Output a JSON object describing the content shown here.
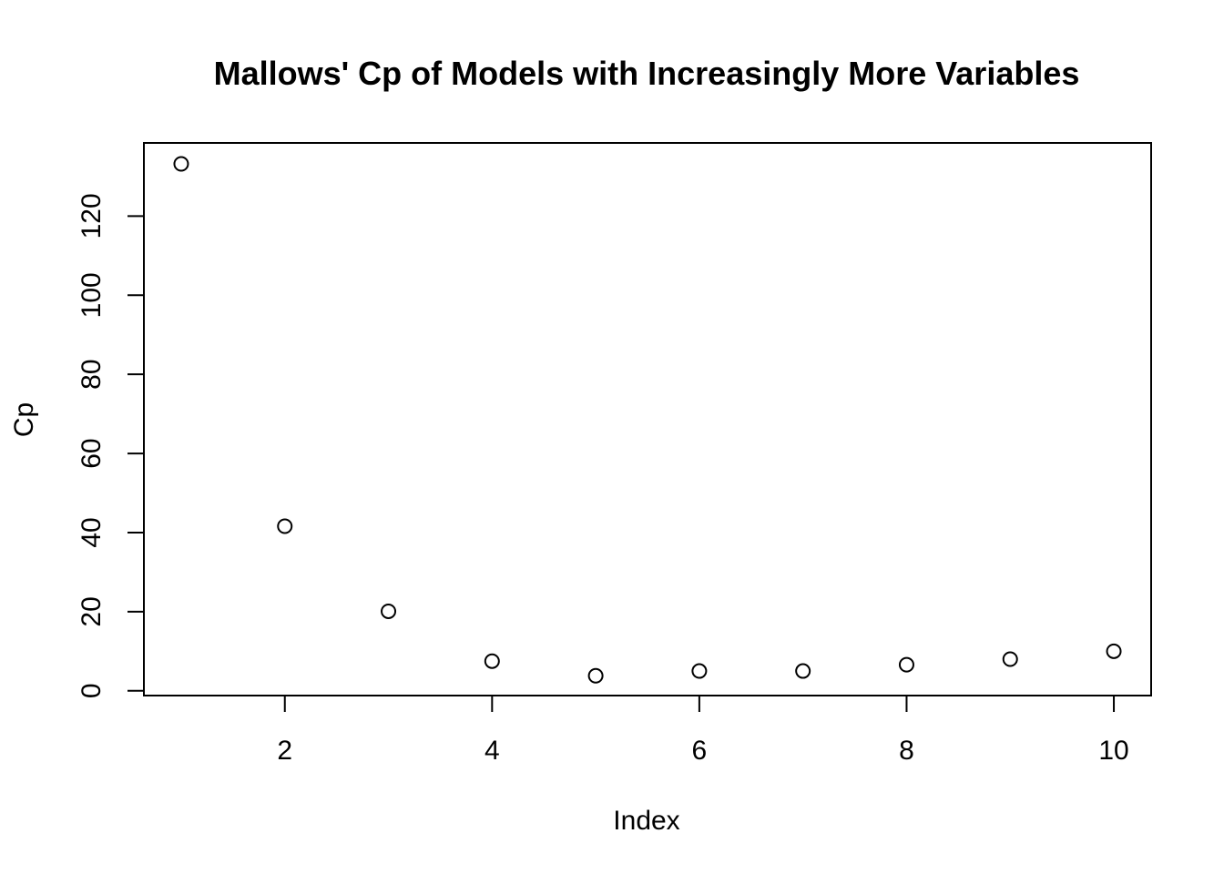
{
  "chart_data": {
    "type": "scatter",
    "title": "Mallows' Cp of Models with Increasingly More Variables",
    "xlabel": "Index",
    "ylabel": "Cp",
    "x": [
      1,
      2,
      3,
      4,
      5,
      6,
      7,
      8,
      9,
      10
    ],
    "y": [
      133.2,
      41.6,
      20.1,
      7.5,
      3.8,
      5.0,
      5.0,
      6.6,
      8.0,
      10.0
    ],
    "xlim": [
      0.64,
      10.36
    ],
    "ylim": [
      -1.2,
      138.5
    ],
    "x_ticks": [
      2,
      4,
      6,
      8,
      10
    ],
    "y_ticks": [
      0,
      20,
      40,
      60,
      80,
      100,
      120
    ],
    "marker": "open-circle",
    "grid": false,
    "legend": "none",
    "colors": {
      "points": "#000000",
      "axes": "#000000",
      "background": "#ffffff"
    }
  }
}
